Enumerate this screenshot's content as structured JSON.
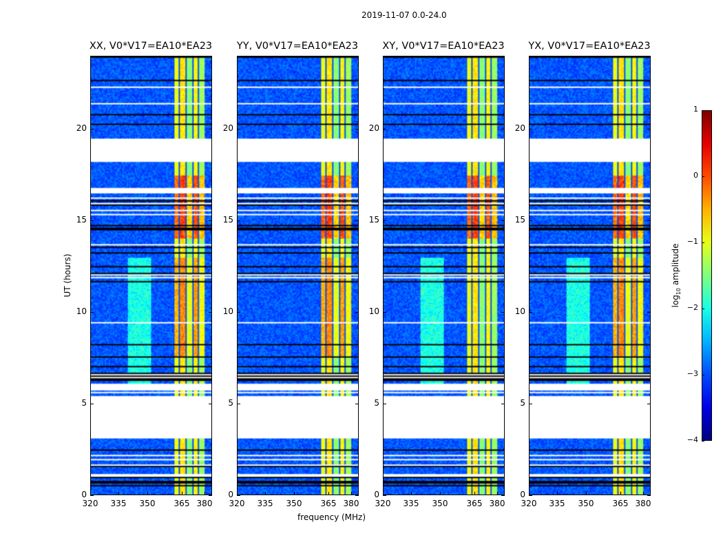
{
  "chart_data": {
    "type": "heatmap",
    "title": "2019-11-07 0.0-24.0",
    "xlabel": "frequency (MHz)",
    "ylabel": "UT (hours)",
    "xlim": [
      320,
      384
    ],
    "ylim": [
      0,
      24
    ],
    "xticks": [
      "320",
      "335",
      "350",
      "365",
      "380"
    ],
    "yticks": [
      "0",
      "5",
      "10",
      "15",
      "20"
    ],
    "panels": [
      {
        "title": "XX, V0*V17=EA10*EA23",
        "pol": "XX"
      },
      {
        "title": "YY, V0*V17=EA10*EA23",
        "pol": "YY"
      },
      {
        "title": "XY, V0*V17=EA10*EA23",
        "pol": "XY"
      },
      {
        "title": "YX, V0*V17=EA10*EA23",
        "pol": "YX"
      }
    ],
    "flagged_hours": [
      [
        18.6,
        20.9
      ],
      [
        17.9,
        18.3
      ],
      [
        7.2,
        7.5
      ],
      [
        4.5,
        5.8
      ],
      [
        22.9,
        23.05
      ],
      [
        22.35,
        22.45
      ]
    ],
    "strong_band_mhz": [
      363,
      380
    ],
    "colorbar": {
      "label": "log10 amplitude",
      "label_main": "log",
      "label_sub": "10",
      "label_rest": " amplitude",
      "range": [
        -4,
        1
      ],
      "ticks": [
        "1",
        "0",
        "−1",
        "−2",
        "−3",
        "−4"
      ],
      "colormap": "jet"
    }
  }
}
